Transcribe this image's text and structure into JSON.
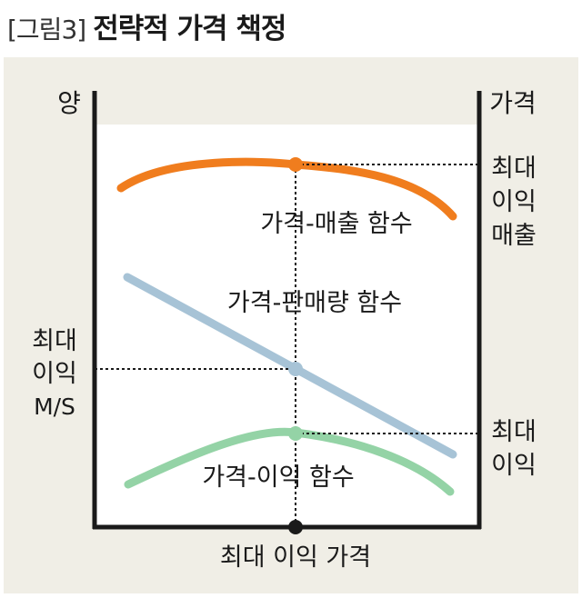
{
  "figure": {
    "label": "[그림3]",
    "title": "전략적 가격 책정"
  },
  "axes": {
    "left_axis_label": "양",
    "right_axis_label": "가격",
    "x_marker_label": "최대 이익 가격",
    "left_marker_label_line1": "최대",
    "left_marker_label_line2": "이익",
    "left_marker_label_line3": "M/S"
  },
  "right_markers": {
    "revenue_line1": "최대",
    "revenue_line2": "이익",
    "revenue_line3": "매출",
    "profit_line1": "최대",
    "profit_line2": "이익"
  },
  "curves": {
    "revenue": {
      "label": "가격-매출 함수",
      "color": "#f07d1e"
    },
    "demand": {
      "label": "가격-판매량 함수",
      "color": "#a7c3d6"
    },
    "profit": {
      "label": "가격-이익 함수",
      "color": "#94d3a6"
    }
  },
  "colors": {
    "panel": "#f0eee6",
    "plot_area": "#ffffff",
    "axis": "#1a1a1a"
  }
}
